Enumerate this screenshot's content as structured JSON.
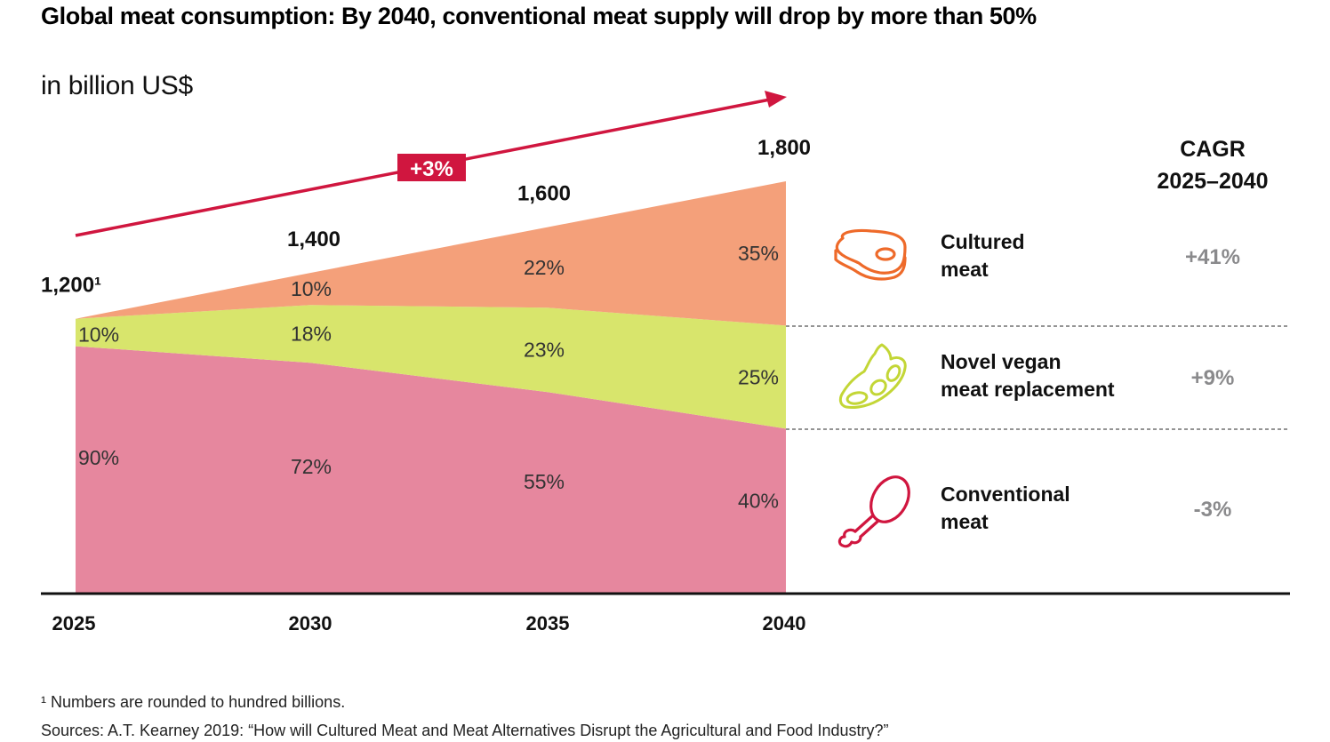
{
  "title": "Global meat consumption: By 2040, conventional meat supply will drop by more than 50%",
  "subtitle": "in billion US$",
  "growth_badge": "+3%",
  "cagr_header": {
    "line1": "CAGR",
    "line2": "2025–2040"
  },
  "legend": [
    {
      "key": "cultured",
      "name_line1": "Cultured",
      "name_line2": "meat",
      "cagr": "+41%",
      "icon": "steak-icon"
    },
    {
      "key": "vegan",
      "name_line1": "Novel vegan",
      "name_line2": "meat replacement",
      "cagr": "+9%",
      "icon": "soybean-pod-icon"
    },
    {
      "key": "conventional",
      "name_line1": "Conventional",
      "name_line2": "meat",
      "cagr": "-3%",
      "icon": "chicken-drumstick-icon"
    }
  ],
  "footnotes": {
    "note": "¹ Numbers are rounded to hundred billions.",
    "source": "Sources: A.T. Kearney 2019: “How will Cultured Meat and Meat Alternatives Disrupt the Agricultural and Food Industry?”"
  },
  "colors": {
    "cultured": "#f4a07a",
    "vegan": "#d8e56c",
    "conventional": "#e6879e",
    "accent": "#d0163f",
    "cultured_icon": "#ee6a2a",
    "vegan_icon": "#c3d636",
    "conventional_icon": "#d0163f",
    "cagr_text": "#8a8a8c"
  },
  "chart_data": {
    "type": "area",
    "stacked": true,
    "title": "Global meat consumption: By 2040, conventional meat supply will drop by more than 50%",
    "ylabel": "in billion US$",
    "xlabel": "",
    "categories": [
      "2025",
      "2030",
      "2035",
      "2040"
    ],
    "totals": [
      1200,
      1400,
      1600,
      1800
    ],
    "total_labels": [
      "1,200¹",
      "1,400",
      "1,600",
      "1,800"
    ],
    "series": [
      {
        "name": "Conventional meat",
        "key": "conventional",
        "share_pct": [
          90,
          72,
          55,
          40
        ],
        "labels": [
          "90%",
          "72%",
          "55%",
          "40%"
        ]
      },
      {
        "name": "Novel vegan meat replacement",
        "key": "vegan",
        "share_pct": [
          10,
          18,
          23,
          25
        ],
        "labels": [
          "10%",
          "18%",
          "23%",
          "25%"
        ]
      },
      {
        "name": "Cultured meat",
        "key": "cultured",
        "share_pct": [
          0,
          10,
          22,
          35
        ],
        "labels": [
          "",
          "10%",
          "22%",
          "35%"
        ]
      }
    ],
    "overall_growth_cagr": "+3%",
    "cagr_2025_2040": {
      "Cultured meat": "+41%",
      "Novel vegan meat replacement": "+9%",
      "Conventional meat": "-3%"
    },
    "ylim": [
      0,
      1800
    ],
    "grid": false,
    "legend_position": "right"
  }
}
